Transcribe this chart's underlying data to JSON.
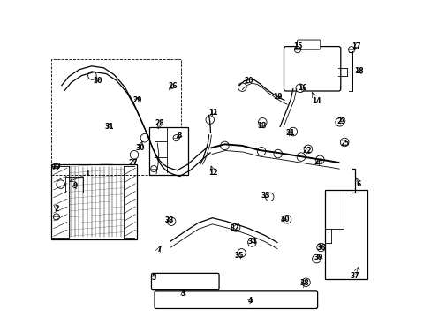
{
  "background_color": "#ffffff",
  "line_color": "#000000"
}
